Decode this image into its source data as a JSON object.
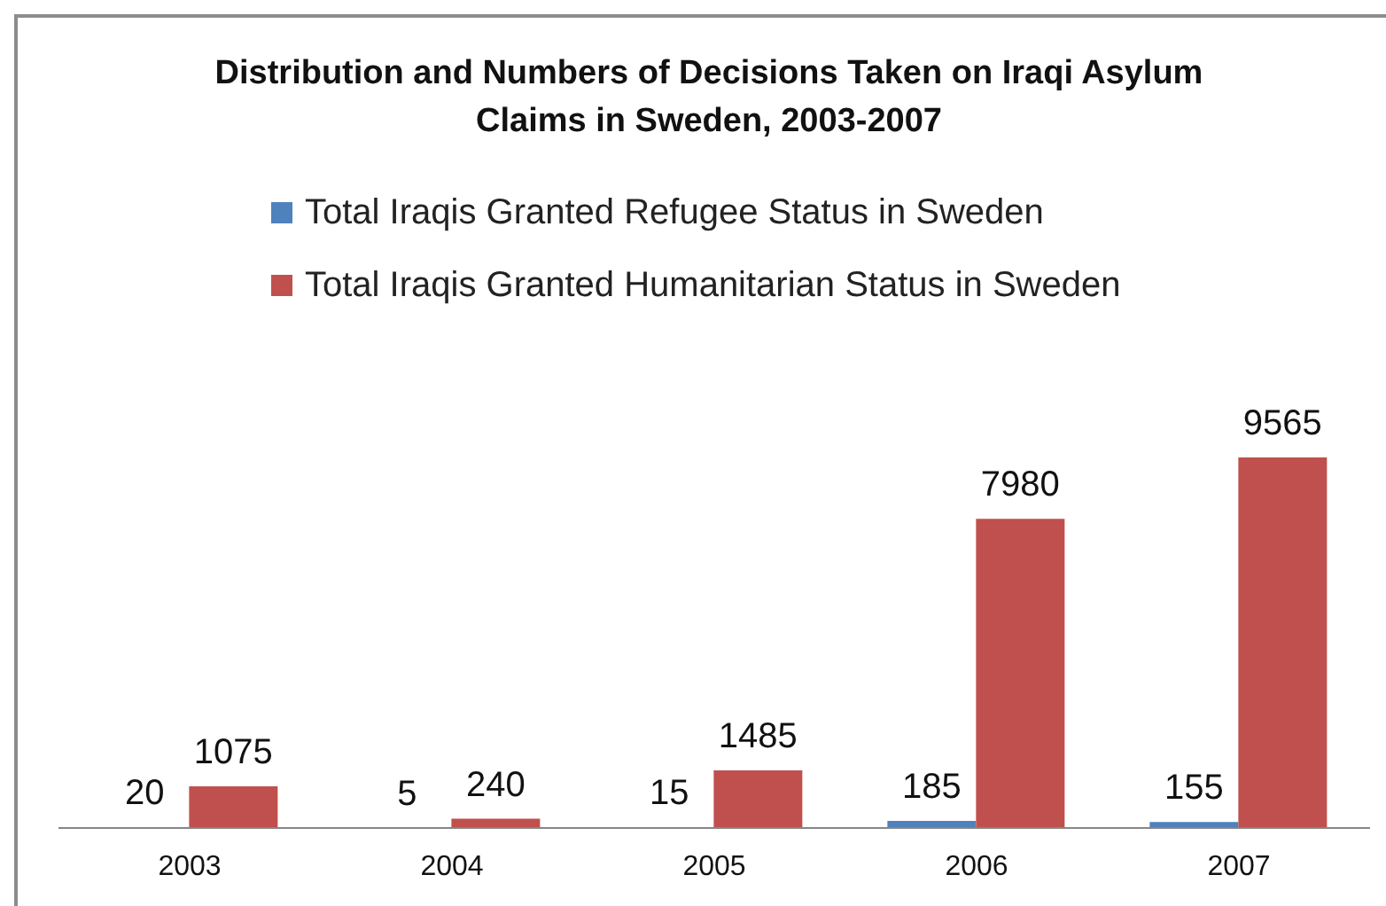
{
  "chart_data": {
    "type": "bar",
    "title": "Distribution and Numbers of Decisions Taken on Iraqi Asylum Claims in Sweden, 2003-2007",
    "categories": [
      "2003",
      "2004",
      "2005",
      "2006",
      "2007"
    ],
    "series": [
      {
        "name": "Total Iraqis Granted Refugee Status in Sweden",
        "color": "#4f81bd",
        "values": [
          20,
          5,
          15,
          185,
          155
        ]
      },
      {
        "name": "Total Iraqis Granted Humanitarian Status in Sweden",
        "color": "#c0504d",
        "values": [
          1075,
          240,
          1485,
          7980,
          9565
        ]
      }
    ],
    "data_labels": true,
    "legend": "top",
    "tick_labels": "x"
  }
}
